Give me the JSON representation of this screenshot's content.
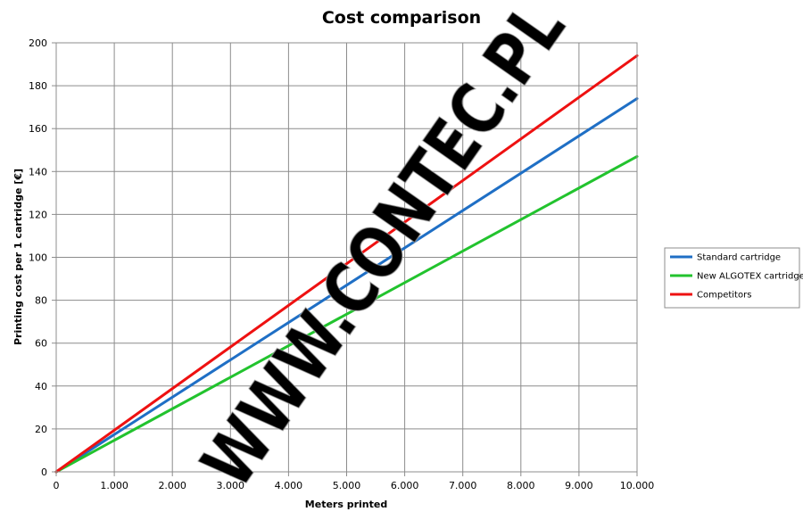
{
  "chart_data": {
    "type": "line",
    "title": "Cost comparison",
    "xlabel": "Meters printed",
    "ylabel": "Printing cost per 1 cartridge [€]",
    "xlim": [
      0,
      10000
    ],
    "ylim": [
      0,
      200
    ],
    "x_ticks": [
      0,
      1000,
      2000,
      3000,
      4000,
      5000,
      6000,
      7000,
      8000,
      9000,
      10000
    ],
    "x_tick_labels": [
      "0",
      "1.000",
      "2.000",
      "3.000",
      "4.000",
      "5.000",
      "6.000",
      "7.000",
      "8.000",
      "9.000",
      "10.000"
    ],
    "y_ticks": [
      0,
      20,
      40,
      60,
      80,
      100,
      120,
      140,
      160,
      180,
      200
    ],
    "y_tick_labels": [
      "0",
      "20",
      "40",
      "60",
      "80",
      "100",
      "120",
      "140",
      "160",
      "180",
      "200"
    ],
    "grid": true,
    "legend_position": "right",
    "series": [
      {
        "name": "Standard cartridge",
        "color": "#1f6fc5",
        "x": [
          0,
          10000
        ],
        "y": [
          0,
          174
        ]
      },
      {
        "name": "New ALGOTEX cartridge",
        "color": "#22c32e",
        "x": [
          0,
          10000
        ],
        "y": [
          0,
          147
        ]
      },
      {
        "name": "Competitors",
        "color": "#ee1111",
        "x": [
          0,
          10000
        ],
        "y": [
          0,
          194
        ]
      }
    ],
    "watermark": "WWW.CONTEC.PL"
  }
}
